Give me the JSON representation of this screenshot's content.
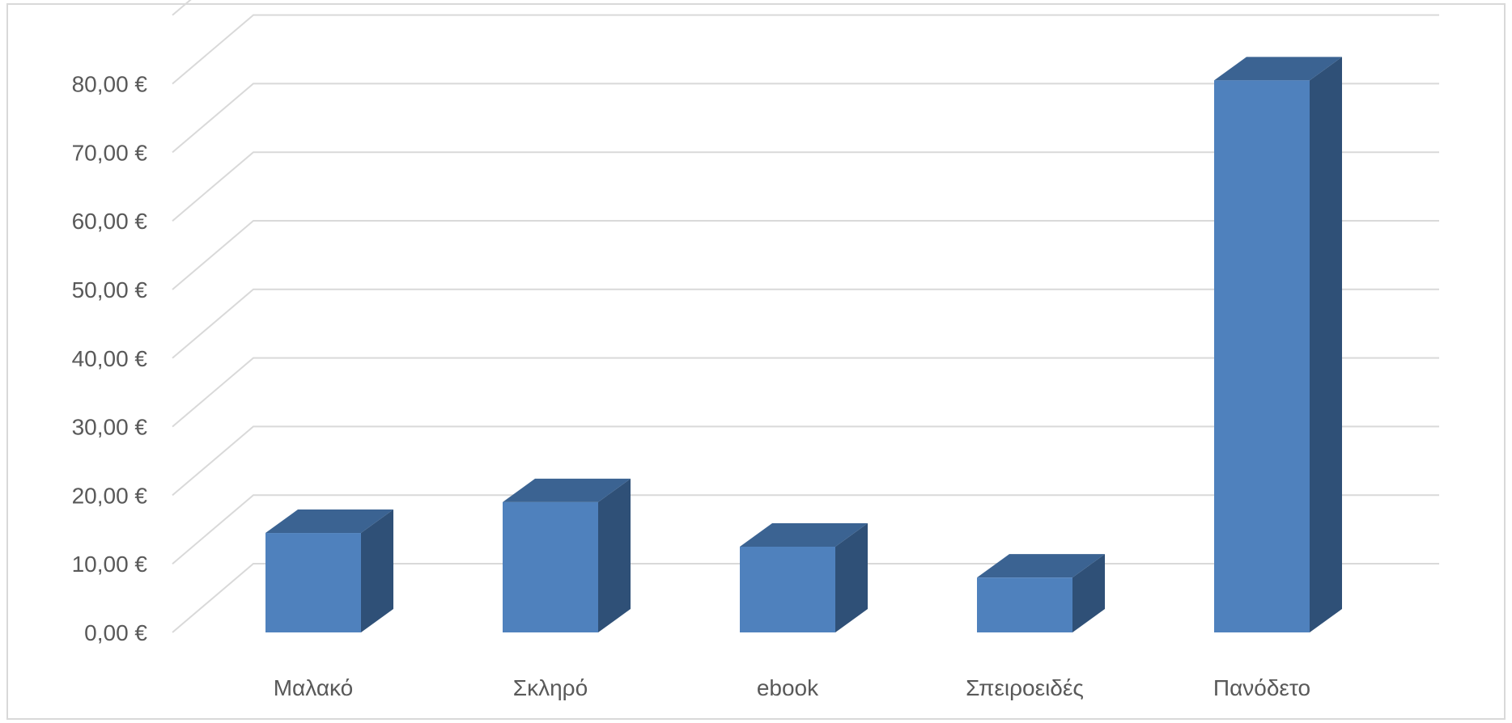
{
  "chart_data": {
    "type": "bar",
    "three_d": true,
    "categories": [
      "Μαλακό",
      "Σκληρό",
      "ebook",
      "Σπειροειδές",
      "Πανόδετο"
    ],
    "values": [
      14.5,
      19,
      12.5,
      8,
      80.5
    ],
    "ylim": [
      0,
      90
    ],
    "ytick_values": [
      0,
      10,
      20,
      30,
      40,
      50,
      60,
      70,
      80
    ],
    "ytick_labels": [
      "0,00 €",
      "10,00 €",
      "20,00 €",
      "30,00 €",
      "40,00 €",
      "50,00 €",
      "60,00 €",
      "70,00 €",
      "80,00 €"
    ],
    "grid": true,
    "legend": "none",
    "colors": {
      "bar_front": "#4f81bd",
      "bar_top": "#3b6392",
      "bar_side": "#2f5077",
      "grid": "#d9d9d9",
      "text": "#595959"
    }
  }
}
